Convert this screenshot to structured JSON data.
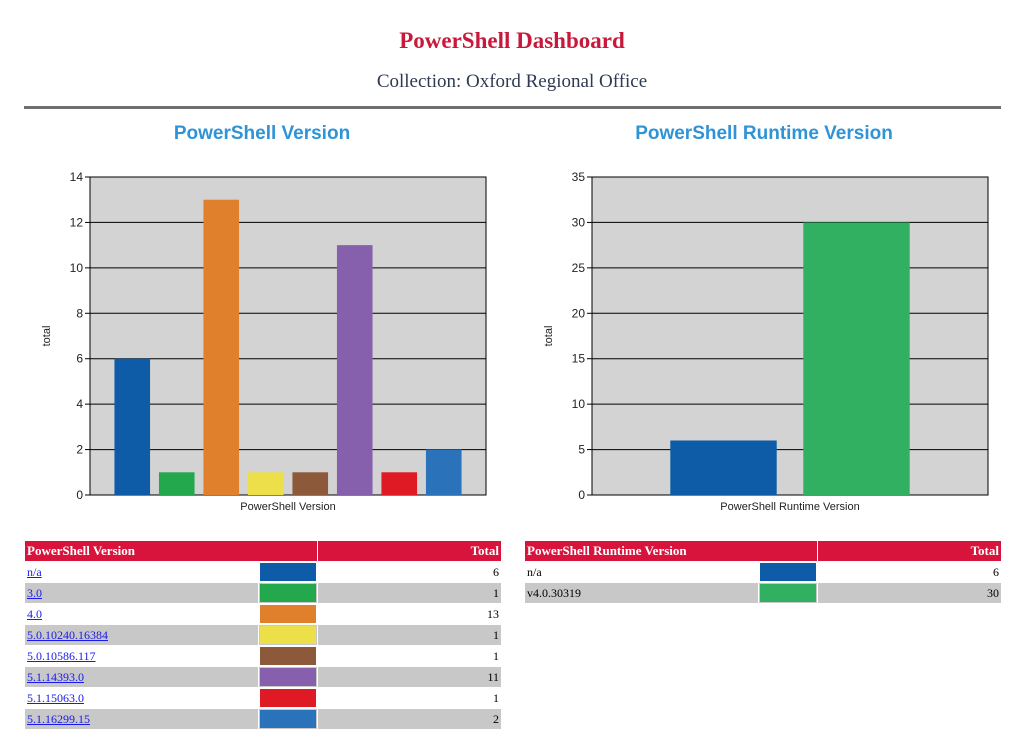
{
  "header": {
    "title": "PowerShell Dashboard",
    "subtitle": "Collection: Oxford Regional Office"
  },
  "colors": {
    "title": "#c8193c",
    "chart_title": "#2f93d6",
    "table_header": "#d8143c",
    "plot_bg": "#d3d3d3"
  },
  "chart_data": [
    {
      "type": "bar",
      "title": "PowerShell Version",
      "xlabel": "PowerShell Version",
      "ylabel": "total",
      "ylim": [
        0,
        14
      ],
      "yticks": [
        0,
        2,
        4,
        6,
        8,
        10,
        12,
        14
      ],
      "grid": true,
      "categories": [
        "n/a",
        "3.0",
        "4.0",
        "5.0.10240.16384",
        "5.0.10586.117",
        "5.1.14393.0",
        "5.1.15063.0",
        "5.1.16299.15"
      ],
      "values": [
        6,
        1,
        13,
        1,
        1,
        11,
        1,
        2
      ],
      "colors": [
        "#0e5ca8",
        "#24a84e",
        "#e07f2c",
        "#ecdf4a",
        "#8c5a3a",
        "#8660ad",
        "#e01a24",
        "#2a72ba"
      ]
    },
    {
      "type": "bar",
      "title": "PowerShell Runtime Version",
      "xlabel": "PowerShell Runtime Version",
      "ylabel": "total",
      "ylim": [
        0,
        35
      ],
      "yticks": [
        0,
        5,
        10,
        15,
        20,
        25,
        30,
        35
      ],
      "grid": true,
      "categories": [
        "n/a",
        "v4.0.30319"
      ],
      "values": [
        6,
        30
      ],
      "colors": [
        "#0e5ca8",
        "#30b060"
      ]
    }
  ],
  "tables": {
    "version": {
      "header_label": "PowerShell Version",
      "header_total": "Total",
      "rows": [
        {
          "label": "n/a",
          "total": "6"
        },
        {
          "label": "3.0",
          "total": "1"
        },
        {
          "label": "4.0",
          "total": "13"
        },
        {
          "label": "5.0.10240.16384",
          "total": "1"
        },
        {
          "label": "5.0.10586.117",
          "total": "1"
        },
        {
          "label": "5.1.14393.0",
          "total": "11"
        },
        {
          "label": "5.1.15063.0",
          "total": "1"
        },
        {
          "label": "5.1.16299.15",
          "total": "2"
        }
      ]
    },
    "runtime": {
      "header_label": "PowerShell Runtime Version",
      "header_total": "Total",
      "rows": [
        {
          "label": "n/a",
          "total": "6"
        },
        {
          "label": "v4.0.30319",
          "total": "30"
        }
      ]
    }
  }
}
